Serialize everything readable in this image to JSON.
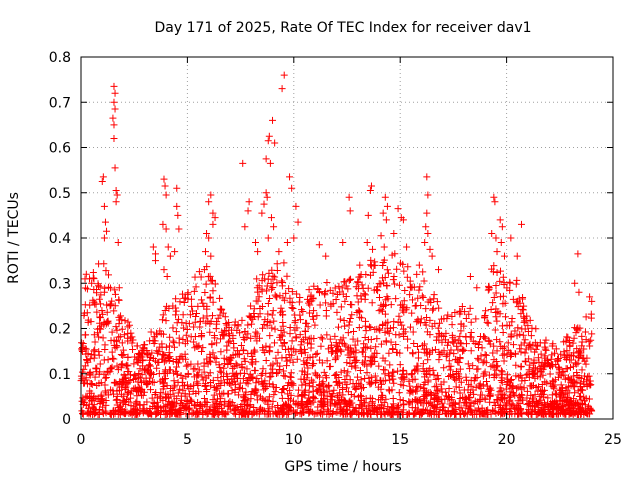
{
  "chart_data": {
    "type": "scatter",
    "title": "Day 171 of 2025, Rate Of TEC Index for receiver dav1",
    "xlabel": "GPS time / hours",
    "ylabel": "ROTI / TECUs",
    "xlim": [
      0,
      25
    ],
    "ylim": [
      0,
      0.8
    ],
    "x_ticks": [
      0,
      5,
      10,
      15,
      20,
      25
    ],
    "y_ticks": [
      0,
      0.1,
      0.2,
      0.3,
      0.4,
      0.5,
      0.6,
      0.7,
      0.8
    ],
    "x_tick_labels": [
      "0",
      "5",
      "10",
      "15",
      "20",
      "25"
    ],
    "y_tick_labels": [
      "0",
      "0.1",
      "0.2",
      "0.3",
      "0.4",
      "0.5",
      "0.6",
      "0.7",
      "0.8"
    ],
    "grid": true,
    "grid_style": "dotted",
    "marker": "plus",
    "marker_color": "#ff0000",
    "envelope": [
      [
        0.0,
        0.3
      ],
      [
        0.5,
        0.32
      ],
      [
        1.0,
        0.34
      ],
      [
        1.5,
        0.3
      ],
      [
        2.0,
        0.24
      ],
      [
        2.5,
        0.18
      ],
      [
        3.0,
        0.16
      ],
      [
        3.5,
        0.2
      ],
      [
        4.0,
        0.24
      ],
      [
        4.5,
        0.26
      ],
      [
        5.0,
        0.28
      ],
      [
        5.5,
        0.32
      ],
      [
        6.0,
        0.34
      ],
      [
        6.5,
        0.26
      ],
      [
        7.0,
        0.2
      ],
      [
        7.5,
        0.22
      ],
      [
        8.0,
        0.28
      ],
      [
        8.5,
        0.32
      ],
      [
        9.0,
        0.34
      ],
      [
        9.5,
        0.34
      ],
      [
        10.0,
        0.28
      ],
      [
        10.5,
        0.26
      ],
      [
        11.0,
        0.3
      ],
      [
        11.5,
        0.32
      ],
      [
        12.0,
        0.28
      ],
      [
        12.5,
        0.3
      ],
      [
        13.0,
        0.3
      ],
      [
        13.5,
        0.34
      ],
      [
        14.0,
        0.36
      ],
      [
        14.5,
        0.36
      ],
      [
        15.0,
        0.36
      ],
      [
        15.5,
        0.32
      ],
      [
        16.0,
        0.32
      ],
      [
        16.5,
        0.28
      ],
      [
        17.0,
        0.24
      ],
      [
        17.5,
        0.22
      ],
      [
        18.0,
        0.26
      ],
      [
        18.5,
        0.22
      ],
      [
        19.0,
        0.3
      ],
      [
        19.5,
        0.34
      ],
      [
        20.0,
        0.3
      ],
      [
        20.5,
        0.3
      ],
      [
        21.0,
        0.22
      ],
      [
        21.5,
        0.18
      ],
      [
        22.0,
        0.16
      ],
      [
        22.5,
        0.16
      ],
      [
        23.0,
        0.18
      ],
      [
        23.5,
        0.22
      ],
      [
        24.0,
        0.24
      ]
    ],
    "outliers": [
      [
        1.55,
        0.735
      ],
      [
        1.6,
        0.72
      ],
      [
        1.55,
        0.7
      ],
      [
        1.6,
        0.685
      ],
      [
        1.5,
        0.665
      ],
      [
        1.55,
        0.65
      ],
      [
        1.55,
        0.62
      ],
      [
        1.6,
        0.555
      ],
      [
        1.65,
        0.505
      ],
      [
        1.7,
        0.495
      ],
      [
        1.65,
        0.48
      ],
      [
        1.05,
        0.535
      ],
      [
        1.0,
        0.525
      ],
      [
        1.1,
        0.47
      ],
      [
        1.15,
        0.435
      ],
      [
        1.2,
        0.415
      ],
      [
        1.1,
        0.4
      ],
      [
        0.25,
        0.32
      ],
      [
        0.4,
        0.31
      ],
      [
        0.5,
        0.3
      ],
      [
        1.75,
        0.39
      ],
      [
        1.8,
        0.29
      ],
      [
        3.4,
        0.38
      ],
      [
        3.5,
        0.365
      ],
      [
        3.5,
        0.35
      ],
      [
        3.9,
        0.53
      ],
      [
        3.95,
        0.515
      ],
      [
        4.0,
        0.495
      ],
      [
        3.85,
        0.43
      ],
      [
        4.0,
        0.42
      ],
      [
        4.1,
        0.38
      ],
      [
        4.2,
        0.36
      ],
      [
        3.9,
        0.33
      ],
      [
        4.05,
        0.315
      ],
      [
        4.5,
        0.51
      ],
      [
        4.5,
        0.47
      ],
      [
        4.55,
        0.45
      ],
      [
        4.6,
        0.42
      ],
      [
        4.4,
        0.37
      ],
      [
        6.1,
        0.495
      ],
      [
        6.0,
        0.48
      ],
      [
        6.2,
        0.455
      ],
      [
        6.3,
        0.445
      ],
      [
        6.2,
        0.43
      ],
      [
        5.9,
        0.41
      ],
      [
        6.0,
        0.4
      ],
      [
        5.85,
        0.37
      ],
      [
        6.1,
        0.36
      ],
      [
        5.8,
        0.33
      ],
      [
        7.6,
        0.565
      ],
      [
        7.9,
        0.48
      ],
      [
        7.85,
        0.46
      ],
      [
        7.7,
        0.425
      ],
      [
        8.2,
        0.39
      ],
      [
        8.3,
        0.37
      ],
      [
        8.85,
        0.625
      ],
      [
        8.8,
        0.615
      ],
      [
        9.1,
        0.61
      ],
      [
        8.7,
        0.575
      ],
      [
        8.9,
        0.565
      ],
      [
        8.7,
        0.5
      ],
      [
        8.75,
        0.49
      ],
      [
        8.6,
        0.475
      ],
      [
        8.5,
        0.455
      ],
      [
        8.95,
        0.445
      ],
      [
        9.05,
        0.425
      ],
      [
        8.8,
        0.4
      ],
      [
        9.3,
        0.37
      ],
      [
        9.55,
        0.76
      ],
      [
        9.45,
        0.73
      ],
      [
        9.0,
        0.66
      ],
      [
        9.8,
        0.535
      ],
      [
        9.9,
        0.51
      ],
      [
        9.7,
        0.39
      ],
      [
        10.1,
        0.47
      ],
      [
        10.2,
        0.435
      ],
      [
        10.0,
        0.4
      ],
      [
        11.2,
        0.385
      ],
      [
        11.5,
        0.36
      ],
      [
        12.6,
        0.49
      ],
      [
        12.65,
        0.46
      ],
      [
        12.3,
        0.39
      ],
      [
        13.1,
        0.34
      ],
      [
        13.65,
        0.515
      ],
      [
        13.6,
        0.505
      ],
      [
        13.5,
        0.45
      ],
      [
        13.45,
        0.39
      ],
      [
        13.7,
        0.375
      ],
      [
        14.3,
        0.49
      ],
      [
        14.4,
        0.47
      ],
      [
        14.2,
        0.455
      ],
      [
        14.35,
        0.44
      ],
      [
        14.1,
        0.405
      ],
      [
        14.25,
        0.38
      ],
      [
        14.9,
        0.465
      ],
      [
        15.05,
        0.445
      ],
      [
        15.15,
        0.44
      ],
      [
        14.7,
        0.41
      ],
      [
        15.3,
        0.38
      ],
      [
        16.25,
        0.535
      ],
      [
        16.3,
        0.495
      ],
      [
        16.25,
        0.455
      ],
      [
        16.2,
        0.425
      ],
      [
        16.3,
        0.41
      ],
      [
        16.15,
        0.39
      ],
      [
        16.4,
        0.375
      ],
      [
        16.5,
        0.36
      ],
      [
        15.9,
        0.34
      ],
      [
        16.8,
        0.33
      ],
      [
        18.3,
        0.315
      ],
      [
        18.6,
        0.29
      ],
      [
        19.4,
        0.49
      ],
      [
        19.45,
        0.48
      ],
      [
        19.7,
        0.44
      ],
      [
        19.8,
        0.425
      ],
      [
        19.5,
        0.4
      ],
      [
        19.3,
        0.41
      ],
      [
        19.75,
        0.39
      ],
      [
        19.55,
        0.37
      ],
      [
        19.9,
        0.36
      ],
      [
        20.7,
        0.43
      ],
      [
        20.2,
        0.4
      ],
      [
        20.5,
        0.36
      ],
      [
        23.35,
        0.365
      ],
      [
        23.2,
        0.3
      ],
      [
        23.4,
        0.28
      ],
      [
        23.9,
        0.27
      ],
      [
        24.0,
        0.26
      ]
    ]
  }
}
